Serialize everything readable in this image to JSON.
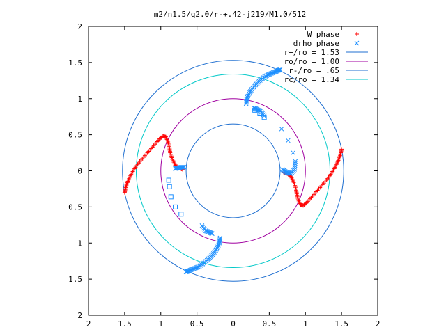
{
  "chart_data": {
    "type": "scatter",
    "title": "m2/n1.5/q2.0/r-+.42-j219/M1.0/512",
    "xlim": [
      -2,
      2
    ],
    "ylim": [
      -2,
      2
    ],
    "x_ticks": [
      -2,
      -1.5,
      -1,
      -0.5,
      0,
      0.5,
      1,
      1.5,
      2
    ],
    "y_ticks": [
      -2,
      -1.5,
      -1,
      -0.5,
      0,
      0.5,
      1,
      1.5,
      2
    ],
    "x_tick_labels": [
      "2",
      "1.5",
      "1",
      "0.5",
      "0",
      "0.5",
      "1",
      "1.5",
      "2"
    ],
    "y_tick_labels": [
      "2",
      "1.5",
      "1",
      "0.5",
      "0",
      "0.5",
      "1",
      "1.5",
      "2"
    ],
    "grid": false,
    "legend_position": "top-right",
    "legend": [
      {
        "label": "W phase",
        "marker": "+",
        "color": "#ff0000"
      },
      {
        "label": "drho phase",
        "marker": "x",
        "color": "#1e90ff"
      },
      {
        "label": "r+/ro = 1.53",
        "line": true,
        "color": "#1f6fd0"
      },
      {
        "label": "ro/ro = 1.00",
        "line": true,
        "color": "#a000a0"
      },
      {
        "label": "r-/ro = .65",
        "line": true,
        "color": "#1f6fd0"
      },
      {
        "label": "rc/ro = 1.34",
        "line": true,
        "color": "#00c8c8"
      }
    ],
    "circles": [
      {
        "name": "r+/ro",
        "radius": 1.53,
        "color": "#1f6fd0"
      },
      {
        "name": "ro/ro",
        "radius": 1.0,
        "color": "#a000a0"
      },
      {
        "name": "r-/ro",
        "radius": 0.65,
        "color": "#1f6fd0"
      },
      {
        "name": "rc/ro",
        "radius": 1.34,
        "color": "#00c8c8"
      }
    ],
    "series": [
      {
        "name": "W phase",
        "marker": "+",
        "color": "#ff0000",
        "points": [
          [
            1.5,
            0.3
          ],
          [
            1.49,
            0.25
          ],
          [
            1.47,
            0.18
          ],
          [
            1.44,
            0.11
          ],
          [
            1.4,
            0.03
          ],
          [
            1.35,
            -0.05
          ],
          [
            1.29,
            -0.13
          ],
          [
            1.22,
            -0.21
          ],
          [
            1.15,
            -0.29
          ],
          [
            1.08,
            -0.37
          ],
          [
            1.02,
            -0.44
          ],
          [
            0.97,
            -0.48
          ],
          [
            0.93,
            -0.47
          ],
          [
            0.9,
            -0.4
          ],
          [
            0.88,
            -0.32
          ],
          [
            0.87,
            -0.25
          ],
          [
            0.84,
            -0.16
          ],
          [
            0.8,
            -0.08
          ],
          [
            0.75,
            -0.04
          ],
          [
            0.7,
            -0.02
          ],
          [
            -1.5,
            -0.3
          ],
          [
            -1.49,
            -0.25
          ],
          [
            -1.47,
            -0.18
          ],
          [
            -1.44,
            -0.11
          ],
          [
            -1.4,
            -0.03
          ],
          [
            -1.35,
            0.05
          ],
          [
            -1.29,
            0.13
          ],
          [
            -1.22,
            0.21
          ],
          [
            -1.15,
            0.29
          ],
          [
            -1.08,
            0.37
          ],
          [
            -1.02,
            0.44
          ],
          [
            -0.97,
            0.48
          ],
          [
            -0.93,
            0.47
          ],
          [
            -0.9,
            0.4
          ],
          [
            -0.88,
            0.32
          ],
          [
            -0.87,
            0.25
          ],
          [
            -0.84,
            0.16
          ],
          [
            -0.8,
            0.08
          ],
          [
            -0.75,
            0.04
          ],
          [
            -0.7,
            0.02
          ]
        ]
      },
      {
        "name": "drho phase",
        "marker": "x",
        "color": "#1e90ff",
        "points": [
          [
            0.18,
            0.93
          ],
          [
            0.19,
            1.0
          ],
          [
            0.22,
            1.07
          ],
          [
            0.26,
            1.13
          ],
          [
            0.31,
            1.19
          ],
          [
            0.36,
            1.24
          ],
          [
            0.42,
            1.29
          ],
          [
            0.48,
            1.33
          ],
          [
            0.53,
            1.35
          ],
          [
            0.58,
            1.37
          ],
          [
            0.62,
            1.39
          ],
          [
            0.65,
            1.4
          ],
          [
            0.29,
            0.87
          ],
          [
            0.33,
            0.85
          ],
          [
            0.38,
            0.83
          ],
          [
            0.43,
            0.76
          ],
          [
            0.67,
            0.58
          ],
          [
            0.76,
            0.42
          ],
          [
            0.83,
            0.25
          ],
          [
            0.86,
            0.13
          ],
          [
            0.85,
            0.02
          ],
          [
            0.8,
            -0.04
          ],
          [
            0.76,
            -0.03
          ],
          [
            0.72,
            -0.01
          ],
          [
            0.68,
            0.02
          ],
          [
            -0.18,
            -0.93
          ],
          [
            -0.19,
            -1.0
          ],
          [
            -0.22,
            -1.07
          ],
          [
            -0.26,
            -1.13
          ],
          [
            -0.31,
            -1.19
          ],
          [
            -0.36,
            -1.24
          ],
          [
            -0.42,
            -1.29
          ],
          [
            -0.48,
            -1.33
          ],
          [
            -0.53,
            -1.35
          ],
          [
            -0.58,
            -1.37
          ],
          [
            -0.62,
            -1.39
          ],
          [
            -0.65,
            -1.4
          ],
          [
            -0.29,
            -0.87
          ],
          [
            -0.33,
            -0.85
          ],
          [
            -0.38,
            -0.83
          ],
          [
            -0.43,
            -0.76
          ],
          [
            -0.68,
            0.05
          ],
          [
            -0.72,
            0.05
          ],
          [
            -0.76,
            0.04
          ],
          [
            -0.8,
            0.03
          ]
        ]
      },
      {
        "name": "drho phase (squares)",
        "marker": "square",
        "color": "#1e90ff",
        "points": [
          [
            0.3,
            0.84
          ],
          [
            0.37,
            0.8
          ],
          [
            0.43,
            0.74
          ],
          [
            -0.89,
            -0.13
          ],
          [
            -0.88,
            -0.22
          ],
          [
            -0.86,
            -0.36
          ],
          [
            -0.8,
            -0.5
          ],
          [
            -0.72,
            -0.6
          ]
        ]
      }
    ]
  }
}
